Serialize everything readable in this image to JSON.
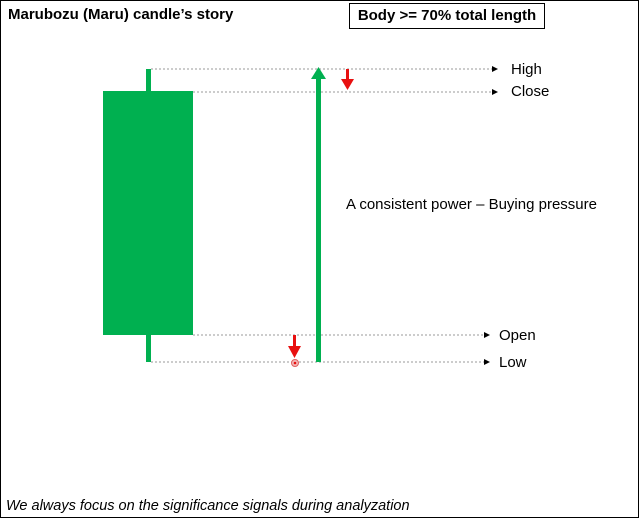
{
  "title": "Marubozu (Maru) candle’s story",
  "rule_box": "Body >= 70% total length",
  "levels": {
    "high": "High",
    "close": "Close",
    "open": "Open",
    "low": "Low"
  },
  "annotation": "A consistent power – Buying pressure",
  "footer": "We always focus on the significance signals during analyzation",
  "colors": {
    "candle": "#00b050",
    "arrow_up": "#00b050",
    "arrow_down": "#e81010",
    "guide": "#9a9a9a"
  }
}
